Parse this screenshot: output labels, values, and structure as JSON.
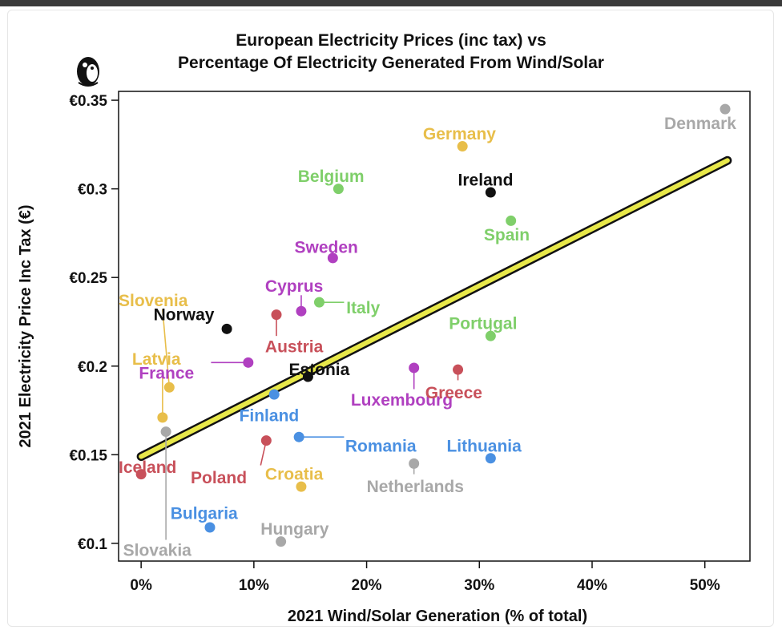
{
  "chart_data": {
    "type": "scatter",
    "title_lines": [
      "European Electricity Prices (inc tax) vs",
      "Percentage Of Electricity Generated From Wind/Solar"
    ],
    "xlabel": "2021 Wind/Solar Generation (% of total)",
    "ylabel": "2021 Electricity Price Inc Tax (€)",
    "xlim": [
      -2,
      54
    ],
    "ylim": [
      0.09,
      0.355
    ],
    "x_ticks": [
      {
        "value": 0,
        "label": "0%"
      },
      {
        "value": 10,
        "label": "10%"
      },
      {
        "value": 20,
        "label": "20%"
      },
      {
        "value": 30,
        "label": "30%"
      },
      {
        "value": 40,
        "label": "40%"
      },
      {
        "value": 50,
        "label": "50%"
      }
    ],
    "y_ticks": [
      {
        "value": 0.1,
        "label": "€0.1"
      },
      {
        "value": 0.15,
        "label": "€0.15"
      },
      {
        "value": 0.2,
        "label": "€0.2"
      },
      {
        "value": 0.25,
        "label": "€0.25"
      },
      {
        "value": 0.3,
        "label": "€0.3"
      },
      {
        "value": 0.35,
        "label": "€0.35"
      }
    ],
    "trendline": {
      "x": [
        0,
        52
      ],
      "y": [
        0.149,
        0.316
      ],
      "color": "#e8e84a",
      "outline": "#111111"
    },
    "points": [
      {
        "country": "Denmark",
        "x": 51.8,
        "y": 0.345,
        "color": "#a8a8a8",
        "label_x": 46.4,
        "label_y": 0.337,
        "align": "start"
      },
      {
        "country": "Germany",
        "x": 28.5,
        "y": 0.324,
        "color": "#e8be4a",
        "label_x": 25.0,
        "label_y": 0.331,
        "align": "start"
      },
      {
        "country": "Ireland",
        "x": 31.0,
        "y": 0.298,
        "color": "#111111",
        "label_x": 28.1,
        "label_y": 0.305,
        "align": "start"
      },
      {
        "country": "Belgium",
        "x": 17.5,
        "y": 0.3,
        "color": "#7fcf6a",
        "label_x": 13.9,
        "label_y": 0.307,
        "align": "start"
      },
      {
        "country": "Spain",
        "x": 32.8,
        "y": 0.282,
        "color": "#7fcf6a",
        "label_x": 30.4,
        "label_y": 0.274,
        "align": "start"
      },
      {
        "country": "Sweden",
        "x": 17.0,
        "y": 0.261,
        "color": "#b040c0",
        "label_x": 13.6,
        "label_y": 0.267,
        "align": "start"
      },
      {
        "country": "Cyprus",
        "x": 14.2,
        "y": 0.231,
        "color": "#b040c0",
        "label_x": 11.0,
        "label_y": 0.245,
        "align": "start"
      },
      {
        "country": "Italy",
        "x": 15.8,
        "y": 0.236,
        "color": "#7fcf6a",
        "label_x": 18.2,
        "label_y": 0.233,
        "align": "start"
      },
      {
        "country": "Austria",
        "x": 12.0,
        "y": 0.229,
        "color": "#c8505a",
        "label_x": 11.0,
        "label_y": 0.211,
        "align": "start"
      },
      {
        "country": "Portugal",
        "x": 31.0,
        "y": 0.217,
        "color": "#7fcf6a",
        "label_x": 27.3,
        "label_y": 0.224,
        "align": "start"
      },
      {
        "country": "Norway",
        "x": 7.6,
        "y": 0.221,
        "color": "#111111",
        "label_x": 1.1,
        "label_y": 0.229,
        "align": "start"
      },
      {
        "country": "Slovenia",
        "x": 2.5,
        "y": 0.188,
        "color": "#e8be4a",
        "label_x": -2.0,
        "label_y": 0.237,
        "align": "start"
      },
      {
        "country": "France",
        "x": 9.5,
        "y": 0.202,
        "color": "#b040c0",
        "label_x": -0.2,
        "label_y": 0.196,
        "align": "start"
      },
      {
        "country": "Latvia",
        "x": 1.9,
        "y": 0.171,
        "color": "#e8be4a",
        "label_x": -0.8,
        "label_y": 0.204,
        "align": "start"
      },
      {
        "country": "Estonia",
        "x": 14.8,
        "y": 0.194,
        "color": "#111111",
        "label_x": 13.1,
        "label_y": 0.198,
        "align": "start"
      },
      {
        "country": "Finland",
        "x": 11.8,
        "y": 0.184,
        "color": "#4a90e2",
        "label_x": 8.7,
        "label_y": 0.172,
        "align": "start"
      },
      {
        "country": "Luxembourg",
        "x": 24.2,
        "y": 0.199,
        "color": "#b040c0",
        "label_x": 18.6,
        "label_y": 0.181,
        "align": "start"
      },
      {
        "country": "Greece",
        "x": 28.1,
        "y": 0.198,
        "color": "#c8505a",
        "label_x": 25.2,
        "label_y": 0.185,
        "align": "start"
      },
      {
        "country": "Romania",
        "x": 14.0,
        "y": 0.16,
        "color": "#4a90e2",
        "label_x": 18.1,
        "label_y": 0.155,
        "align": "start"
      },
      {
        "country": "Lithuania",
        "x": 31.0,
        "y": 0.148,
        "color": "#4a90e2",
        "label_x": 27.1,
        "label_y": 0.155,
        "align": "start"
      },
      {
        "country": "Iceland",
        "x": 0.0,
        "y": 0.139,
        "color": "#c8505a",
        "label_x": -2.0,
        "label_y": 0.143,
        "align": "start"
      },
      {
        "country": "Poland",
        "x": 11.1,
        "y": 0.158,
        "color": "#c8505a",
        "label_x": 4.4,
        "label_y": 0.137,
        "align": "start"
      },
      {
        "country": "Croatia",
        "x": 14.2,
        "y": 0.132,
        "color": "#e8be4a",
        "label_x": 11.0,
        "label_y": 0.139,
        "align": "start"
      },
      {
        "country": "Netherlands",
        "x": 24.2,
        "y": 0.145,
        "color": "#a8a8a8",
        "label_x": 20.0,
        "label_y": 0.132,
        "align": "start"
      },
      {
        "country": "Bulgaria",
        "x": 6.1,
        "y": 0.109,
        "color": "#4a90e2",
        "label_x": 2.6,
        "label_y": 0.117,
        "align": "start"
      },
      {
        "country": "Hungary",
        "x": 12.4,
        "y": 0.101,
        "color": "#a8a8a8",
        "label_x": 10.6,
        "label_y": 0.108,
        "align": "start"
      },
      {
        "country": "Slovakia",
        "x": 2.2,
        "y": 0.163,
        "color": "#a8a8a8",
        "label_x": -1.6,
        "label_y": 0.096,
        "align": "start"
      }
    ],
    "connectors": [
      {
        "country": "Slovenia",
        "from": [
          2.5,
          0.188
        ],
        "to": [
          1.9,
          0.232
        ],
        "color": "#e8be4a"
      },
      {
        "country": "Latvia",
        "from": [
          1.9,
          0.171
        ],
        "to": [
          1.9,
          0.198
        ],
        "color": "#e8be4a"
      },
      {
        "country": "France",
        "from": [
          9.5,
          0.202
        ],
        "to": [
          6.2,
          0.202
        ],
        "color": "#b040c0"
      },
      {
        "country": "Cyprus",
        "from": [
          14.2,
          0.231
        ],
        "to": [
          14.2,
          0.24
        ],
        "color": "#b040c0"
      },
      {
        "country": "Italy",
        "from": [
          15.8,
          0.236
        ],
        "to": [
          18.0,
          0.236
        ],
        "color": "#7fcf6a"
      },
      {
        "country": "Austria",
        "from": [
          12.0,
          0.229
        ],
        "to": [
          12.0,
          0.217
        ],
        "color": "#c8505a"
      },
      {
        "country": "Portugal",
        "from": [
          31.0,
          0.217
        ],
        "to": [
          31.0,
          0.227
        ],
        "color": "#7fcf6a"
      },
      {
        "country": "Romania",
        "from": [
          14.0,
          0.16
        ],
        "to": [
          18.0,
          0.16
        ],
        "color": "#4a90e2"
      },
      {
        "country": "Poland",
        "from": [
          11.1,
          0.158
        ],
        "to": [
          10.6,
          0.144
        ],
        "color": "#c8505a"
      },
      {
        "country": "Luxembourg",
        "from": [
          24.2,
          0.199
        ],
        "to": [
          24.2,
          0.187
        ],
        "color": "#b040c0"
      },
      {
        "country": "Slovakia",
        "from": [
          2.2,
          0.163
        ],
        "to": [
          2.2,
          0.102
        ],
        "color": "#a8a8a8"
      },
      {
        "country": "Greece",
        "from": [
          28.1,
          0.198
        ],
        "to": [
          28.1,
          0.192
        ],
        "color": "#c8505a"
      },
      {
        "country": "Netherlands",
        "from": [
          24.2,
          0.145
        ],
        "to": [
          24.2,
          0.139
        ],
        "color": "#a8a8a8"
      }
    ]
  },
  "logo": {
    "name": "penguin-yin-yang-logo"
  }
}
